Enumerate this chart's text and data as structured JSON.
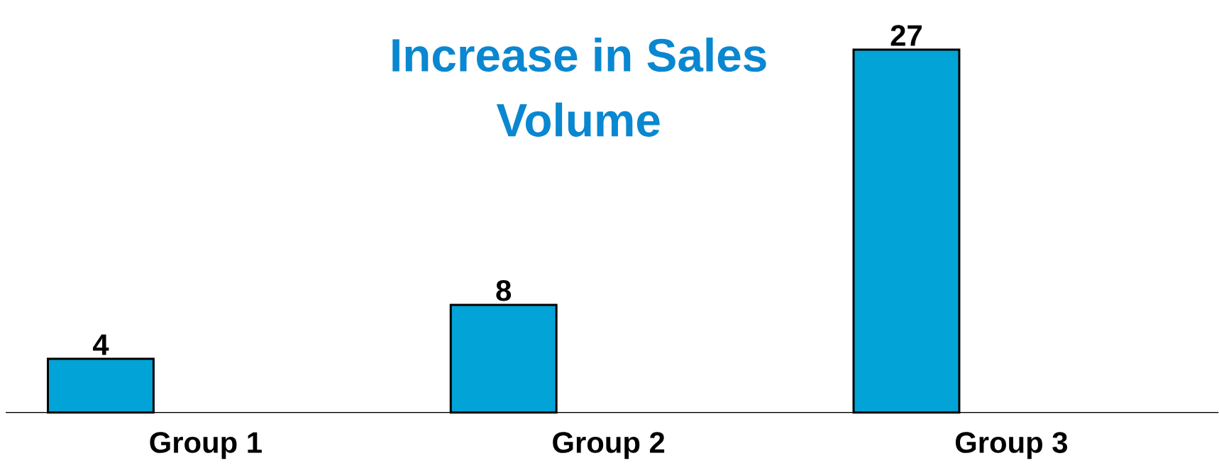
{
  "chart_data": {
    "type": "bar",
    "title": "Increase in Sales Volume",
    "categories": [
      "Group 1",
      "Group 2",
      "Group 3"
    ],
    "values": [
      4,
      8,
      27
    ],
    "color": "#02a3d6",
    "data_labels": true
  }
}
